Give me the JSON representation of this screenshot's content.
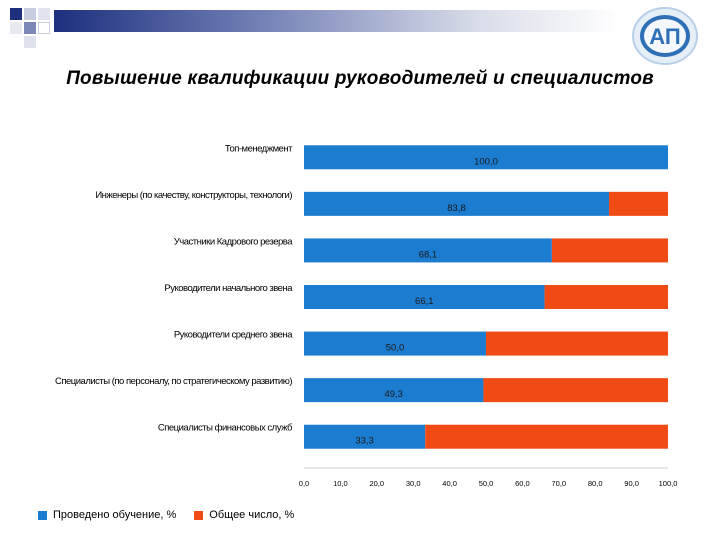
{
  "page": {
    "title": "Повышение квалификации руководителей и специалистов",
    "logo_text": "АП"
  },
  "colors": {
    "trained": "#1b7cd0",
    "total": "#f04a15",
    "header_dark": "#1d2f7e",
    "logo_ring": "#2e6fb5"
  },
  "chart_data": {
    "type": "bar",
    "orientation": "horizontal",
    "stacked": true,
    "categories": [
      "Топ-менеджмент",
      "Инженеры (по качеству, конструкторы, технологи)",
      "Участники Кадрового резерва",
      "Руководители начального звена",
      "Руководители среднего звена",
      "Специалисты (по персоналу, по стратегическому развитию)",
      "Специалисты финансовых служб"
    ],
    "series": [
      {
        "name": "Проведено обучение, %",
        "values": [
          100.0,
          83.8,
          68.1,
          66.1,
          50.0,
          49.3,
          33.3
        ]
      },
      {
        "name": "Общее число, %",
        "values": [
          0.0,
          16.2,
          31.9,
          33.9,
          50.0,
          50.7,
          66.7
        ]
      }
    ],
    "data_labels": [
      "100,0",
      "83,8",
      "68,1",
      "66,1",
      "50,0",
      "49,3",
      "33,3"
    ],
    "xlim": [
      0,
      100
    ],
    "x_ticks": [
      "0,0",
      "10,0",
      "20,0",
      "30,0",
      "40,0",
      "50,0",
      "60,0",
      "70,0",
      "80,0",
      "90,0",
      "100,0"
    ],
    "legend_position": "bottom-left"
  }
}
